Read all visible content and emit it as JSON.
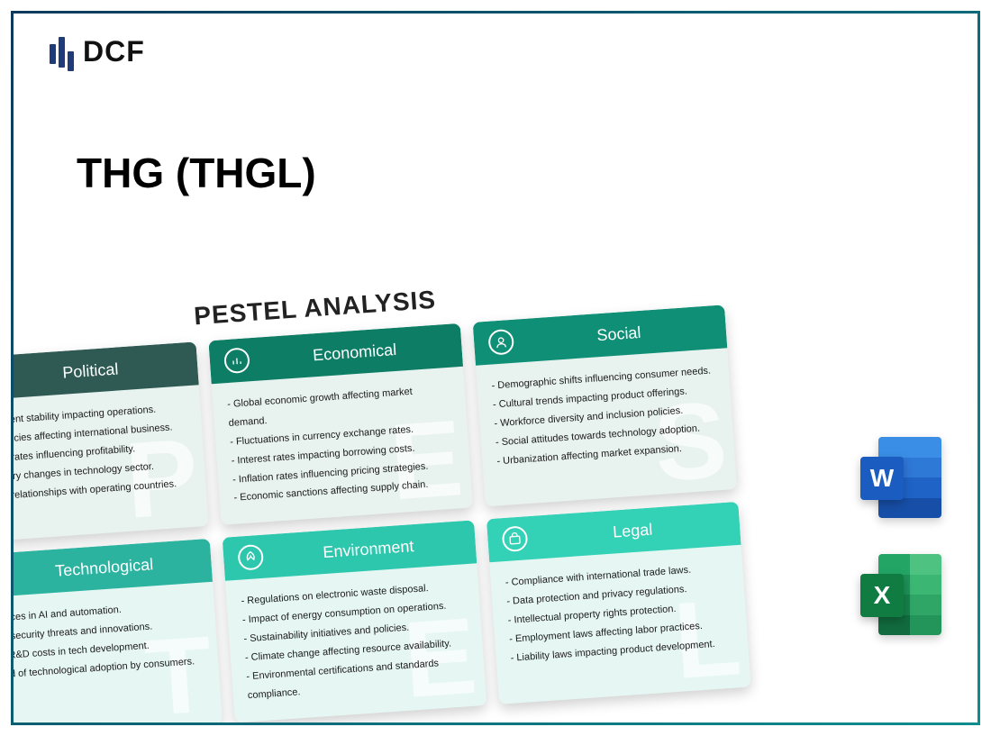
{
  "logo": {
    "text": "DCF"
  },
  "title": "THG (THGL)",
  "pestel": {
    "heading": "PESTEL ANALYSIS",
    "row1_body_bg": "#e8f2ef",
    "row2_body_bg": "#e6f7f3",
    "cards": [
      {
        "key": "political",
        "title": "Political",
        "letter": "P",
        "head_bg": "#2f5a53",
        "items": [
          "Government stability impacting operations.",
          "Trade policies affecting international business.",
          "Taxation rates influencing profitability.",
          "Regulatory changes in technology sector.",
          "Political relationships with operating countries."
        ]
      },
      {
        "key": "economical",
        "title": "Economical",
        "letter": "E",
        "head_bg": "#0d7d66",
        "items": [
          "Global economic growth affecting market demand.",
          "Fluctuations in currency exchange rates.",
          "Interest rates impacting borrowing costs.",
          "Inflation rates influencing pricing strategies.",
          "Economic sanctions affecting supply chain."
        ]
      },
      {
        "key": "social",
        "title": "Social",
        "letter": "S",
        "head_bg": "#0f8f76",
        "items": [
          "Demographic shifts influencing consumer needs.",
          "Cultural trends impacting product offerings.",
          "Workforce diversity and inclusion policies.",
          "Social attitudes towards technology adoption.",
          "Urbanization affecting market expansion."
        ]
      },
      {
        "key": "technological",
        "title": "Technological",
        "letter": "T",
        "head_bg": "#2bb3a0",
        "items": [
          "Advances in AI and automation.",
          "Cybersecurity threats and innovations.",
          "High R&D costs in tech development.",
          "Speed of technological adoption by consumers."
        ]
      },
      {
        "key": "environment",
        "title": "Environment",
        "letter": "E",
        "head_bg": "#2dc7ad",
        "items": [
          "Regulations on electronic waste disposal.",
          "Impact of energy consumption on operations.",
          "Sustainability initiatives and policies.",
          "Climate change affecting resource availability.",
          "Environmental certifications and standards compliance."
        ]
      },
      {
        "key": "legal",
        "title": "Legal",
        "letter": "L",
        "head_bg": "#33d1b6",
        "items": [
          "Compliance with international trade laws.",
          "Data protection and privacy regulations.",
          "Intellectual property rights protection.",
          "Employment laws affecting labor practices.",
          "Liability laws impacting product development."
        ]
      }
    ]
  },
  "icons": {
    "word": {
      "glyph": "W",
      "front": "#1a5cbf",
      "stripes": [
        "#3a8ee6",
        "#2e78d6",
        "#1f63c7",
        "#174fa8"
      ]
    },
    "excel": {
      "glyph": "X",
      "front": "#107c41",
      "cells": [
        "#23a566",
        "#4dc281",
        "#1e9158",
        "#3bb673",
        "#17804c",
        "#2fa566",
        "#116b3e",
        "#23955a"
      ]
    }
  }
}
